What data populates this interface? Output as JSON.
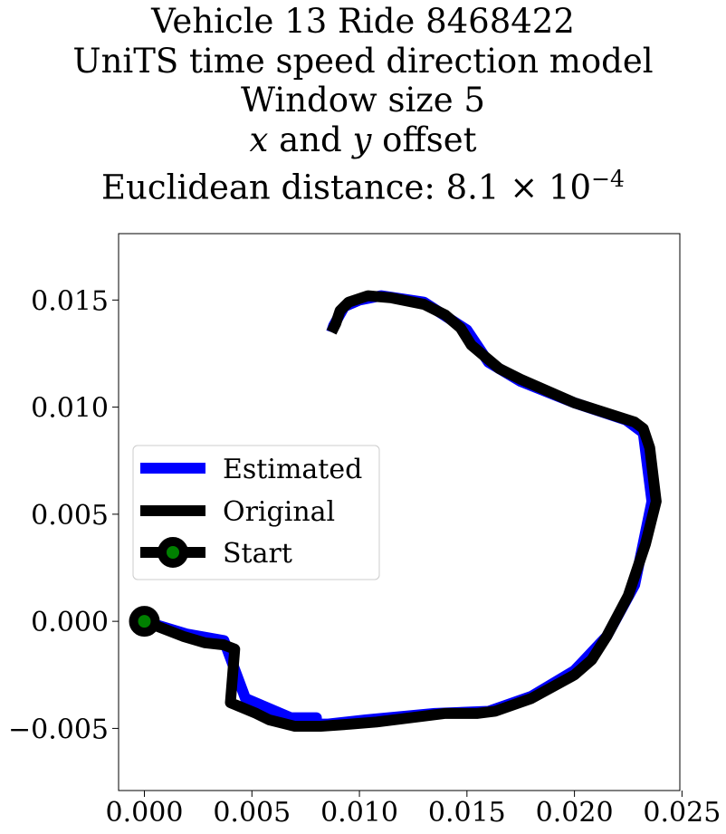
{
  "chart_data": {
    "type": "line",
    "title_lines": [
      "Vehicle 13 Ride 8468422",
      "UniTS time speed direction model",
      "Window size 5"
    ],
    "title_offset_line": {
      "x": "x",
      "and": " and ",
      "y": "y",
      "rest": " offset"
    },
    "title_distance": {
      "prefix": "Euclidean distance: ",
      "value": "8.1 × 10",
      "exponent": "−4"
    },
    "xlim": [
      -0.0012,
      0.0249
    ],
    "ylim": [
      -0.0079,
      0.0181
    ],
    "xticks": [
      0.0,
      0.005,
      0.01,
      0.015,
      0.02,
      0.025
    ],
    "xtick_labels": [
      "0.000",
      "0.005",
      "0.010",
      "0.015",
      "0.020",
      "0.025"
    ],
    "yticks": [
      -0.005,
      0.0,
      0.005,
      0.01,
      0.015
    ],
    "ytick_labels": [
      "−0.005",
      "0.000",
      "0.005",
      "0.010",
      "0.015"
    ],
    "legend_position": "center-left",
    "series": [
      {
        "name": "Estimated",
        "color": "#0000ff",
        "points": [
          [
            0.0,
            0.0
          ],
          [
            0.002,
            -0.0006
          ],
          [
            0.0037,
            -0.0009
          ],
          [
            0.0047,
            -0.0036
          ],
          [
            0.0068,
            -0.0045
          ],
          [
            0.008,
            -0.0045
          ],
          [
            0.008,
            -0.0048
          ],
          [
            0.0085,
            -0.0048
          ],
          [
            0.0103,
            -0.0046
          ],
          [
            0.0135,
            -0.0043
          ],
          [
            0.016,
            -0.0042
          ],
          [
            0.018,
            -0.0035
          ],
          [
            0.02,
            -0.0023
          ],
          [
            0.0215,
            -0.0007
          ],
          [
            0.0228,
            0.0017
          ],
          [
            0.0236,
            0.0056
          ],
          [
            0.0232,
            0.0088
          ],
          [
            0.0224,
            0.0094
          ],
          [
            0.02,
            0.0102
          ],
          [
            0.0175,
            0.0112
          ],
          [
            0.016,
            0.0121
          ],
          [
            0.015,
            0.0136
          ],
          [
            0.013,
            0.0149
          ],
          [
            0.011,
            0.0152
          ],
          [
            0.01,
            0.015
          ],
          [
            0.0093,
            0.0147
          ],
          [
            0.0088,
            0.0138
          ],
          [
            0.0087,
            0.0135
          ]
        ]
      },
      {
        "name": "Original",
        "color": "#000000",
        "points": [
          [
            0.0,
            0.0
          ],
          [
            0.0018,
            -0.0007
          ],
          [
            0.0028,
            -0.001
          ],
          [
            0.0037,
            -0.0011
          ],
          [
            0.0042,
            -0.0013
          ],
          [
            0.004,
            -0.0038
          ],
          [
            0.0052,
            -0.0043
          ],
          [
            0.0058,
            -0.0046
          ],
          [
            0.007,
            -0.0049
          ],
          [
            0.0082,
            -0.0049
          ],
          [
            0.0096,
            -0.0048
          ],
          [
            0.0108,
            -0.0047
          ],
          [
            0.014,
            -0.0043
          ],
          [
            0.0155,
            -0.0043
          ],
          [
            0.0163,
            -0.0042
          ],
          [
            0.018,
            -0.0036
          ],
          [
            0.02,
            -0.0025
          ],
          [
            0.0208,
            -0.0018
          ],
          [
            0.0215,
            -0.0007
          ],
          [
            0.0225,
            0.0012
          ],
          [
            0.0233,
            0.0036
          ],
          [
            0.0238,
            0.0056
          ],
          [
            0.0235,
            0.0081
          ],
          [
            0.0232,
            0.009
          ],
          [
            0.0228,
            0.0093
          ],
          [
            0.02,
            0.0102
          ],
          [
            0.0175,
            0.0113
          ],
          [
            0.0165,
            0.0118
          ],
          [
            0.0152,
            0.0129
          ],
          [
            0.0147,
            0.0137
          ],
          [
            0.014,
            0.0143
          ],
          [
            0.013,
            0.0148
          ],
          [
            0.0115,
            0.0151
          ],
          [
            0.0104,
            0.0152
          ],
          [
            0.0095,
            0.0149
          ],
          [
            0.0091,
            0.0145
          ],
          [
            0.0089,
            0.0139
          ],
          [
            0.0087,
            0.0135
          ]
        ]
      }
    ],
    "start": {
      "name": "Start",
      "point": [
        0.0,
        0.0
      ],
      "marker_edge": "#000000",
      "marker_face": "#008000"
    },
    "colors": {
      "estimated": "#0000ff",
      "original": "#000000",
      "start_face": "#008000"
    }
  }
}
